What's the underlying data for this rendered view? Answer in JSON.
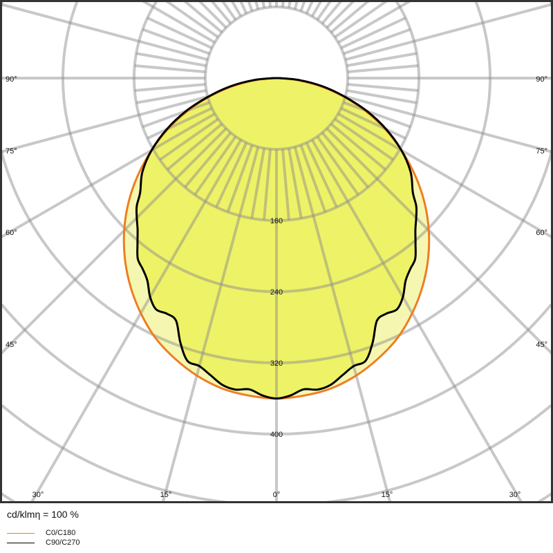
{
  "chart_data": {
    "type": "polar-line",
    "unit_label": "cd/klmη = 100 %",
    "radial_ticks": [
      160,
      240,
      320,
      400
    ],
    "radial_grid_step": 80,
    "angle_ticks": [
      "90°",
      "75°",
      "60°",
      "45°",
      "30°",
      "15°",
      "0°",
      "15°",
      "30°",
      "45°",
      "60°",
      "75°",
      "90°"
    ],
    "angles_deg": [
      0,
      5,
      10,
      15,
      20,
      25,
      30,
      35,
      40,
      45,
      50,
      55,
      60,
      65,
      70,
      75,
      80,
      85,
      90
    ],
    "series": [
      {
        "name": "C0/C180",
        "color": "#ee7d22",
        "angles_deg": [
          0,
          5,
          10,
          15,
          20,
          25,
          30,
          35,
          40,
          45,
          50,
          55,
          60,
          65,
          70,
          75,
          80,
          85,
          90
        ],
        "values": [
          360,
          358,
          354,
          346,
          335,
          322,
          305,
          286,
          265,
          242,
          217,
          190,
          162,
          134,
          105,
          76,
          48,
          22,
          2
        ]
      },
      {
        "name": "C90/C270",
        "color": "#000000",
        "angles_deg": [
          0,
          2.5,
          5,
          7.5,
          10,
          12.5,
          15,
          17.5,
          20,
          22.5,
          25,
          27.5,
          30,
          32.5,
          35,
          37.5,
          40,
          42.5,
          45,
          47.5,
          50,
          55,
          60,
          65,
          70,
          75,
          80,
          85,
          90
        ],
        "values": [
          360,
          357,
          351,
          353,
          350,
          342,
          335,
          333,
          316,
          295,
          292,
          293,
          284,
          270,
          262,
          256,
          243,
          231,
          222,
          213,
          200,
          184,
          162,
          136,
          108,
          78,
          52,
          26,
          4
        ]
      }
    ],
    "fill_inner": "#eef266",
    "fill_outer": "#f5f7b0",
    "grid_color": "#c8c8c8"
  }
}
